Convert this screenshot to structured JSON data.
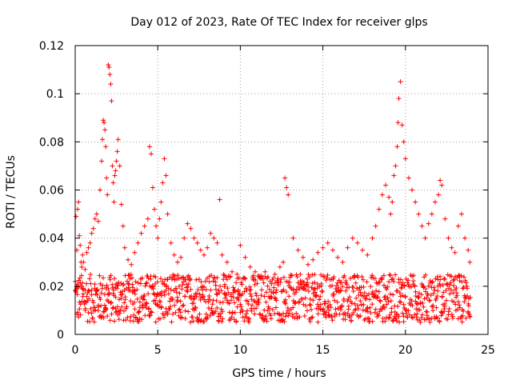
{
  "chart_data": {
    "type": "scatter",
    "title": "Day 012 of 2023, Rate Of TEC Index for receiver glps",
    "xlabel": "GPS time / hours",
    "ylabel": "ROTI / TECUs",
    "xlim": [
      0,
      25
    ],
    "ylim": [
      0,
      0.12
    ],
    "xticks": [
      0,
      5,
      10,
      15,
      20,
      25
    ],
    "xtick_labels": [
      "0",
      "5",
      "10",
      "15",
      "20",
      "25"
    ],
    "yticks": [
      0,
      0.02,
      0.04,
      0.06,
      0.08,
      0.1,
      0.12
    ],
    "ytick_labels": [
      "0",
      "0.02",
      "0.04",
      "0.06",
      "0.08",
      "0.1",
      "0.12"
    ],
    "grid": true,
    "marker": "plus",
    "series": [
      {
        "name": "ROTI",
        "color": "#ff0000",
        "x": [
          0.0,
          0.05,
          0.1,
          0.15,
          0.2,
          0.25,
          0.3,
          0.35,
          0.4,
          0.45,
          0.5,
          0.6,
          0.7,
          0.8,
          0.9,
          1.0,
          1.1,
          1.2,
          1.3,
          1.4,
          1.5,
          1.6,
          1.65,
          1.7,
          1.75,
          1.8,
          1.85,
          1.9,
          1.95,
          2.0,
          2.05,
          2.1,
          2.15,
          2.2,
          2.25,
          2.3,
          2.35,
          2.4,
          2.45,
          2.5,
          2.55,
          2.6,
          2.7,
          2.8,
          2.9,
          3.0,
          3.2,
          3.4,
          3.6,
          3.8,
          4.0,
          4.2,
          4.4,
          4.5,
          4.6,
          4.7,
          4.8,
          4.9,
          5.0,
          5.1,
          5.2,
          5.3,
          5.4,
          5.5,
          5.6,
          5.8,
          6.0,
          6.2,
          6.4,
          6.6,
          6.8,
          7.0,
          7.2,
          7.4,
          7.6,
          7.8,
          8.0,
          8.2,
          8.4,
          8.6,
          8.75,
          8.9,
          9.2,
          9.5,
          9.8,
          10.0,
          10.3,
          10.6,
          10.9,
          11.2,
          11.5,
          11.8,
          12.1,
          12.4,
          12.6,
          12.7,
          12.8,
          12.9,
          13.2,
          13.5,
          13.8,
          14.1,
          14.4,
          14.7,
          15.0,
          15.3,
          15.6,
          15.9,
          16.2,
          16.5,
          16.8,
          17.1,
          17.4,
          17.7,
          18.0,
          18.2,
          18.4,
          18.6,
          18.8,
          19.0,
          19.1,
          19.2,
          19.3,
          19.4,
          19.5,
          19.55,
          19.6,
          19.7,
          19.8,
          19.9,
          20.0,
          20.2,
          20.4,
          20.6,
          20.8,
          21.0,
          21.2,
          21.4,
          21.6,
          21.8,
          22.0,
          22.1,
          22.2,
          22.4,
          22.6,
          22.8,
          23.0,
          23.2,
          23.4,
          23.6,
          23.8,
          23.9
        ],
        "y": [
          0.022,
          0.049,
          0.035,
          0.052,
          0.055,
          0.041,
          0.037,
          0.03,
          0.028,
          0.033,
          0.03,
          0.027,
          0.034,
          0.036,
          0.038,
          0.042,
          0.044,
          0.048,
          0.05,
          0.047,
          0.06,
          0.072,
          0.081,
          0.089,
          0.088,
          0.085,
          0.078,
          0.065,
          0.058,
          0.112,
          0.111,
          0.108,
          0.104,
          0.097,
          0.07,
          0.063,
          0.055,
          0.066,
          0.068,
          0.072,
          0.076,
          0.081,
          0.07,
          0.054,
          0.045,
          0.036,
          0.031,
          0.029,
          0.034,
          0.038,
          0.042,
          0.045,
          0.048,
          0.078,
          0.075,
          0.061,
          0.052,
          0.045,
          0.04,
          0.048,
          0.055,
          0.063,
          0.073,
          0.066,
          0.05,
          0.038,
          0.033,
          0.03,
          0.032,
          0.04,
          0.046,
          0.044,
          0.04,
          0.038,
          0.035,
          0.033,
          0.036,
          0.042,
          0.04,
          0.038,
          0.056,
          0.033,
          0.03,
          0.026,
          0.025,
          0.037,
          0.032,
          0.028,
          0.026,
          0.024,
          0.026,
          0.022,
          0.025,
          0.028,
          0.03,
          0.065,
          0.061,
          0.058,
          0.04,
          0.035,
          0.032,
          0.029,
          0.031,
          0.034,
          0.036,
          0.038,
          0.035,
          0.032,
          0.03,
          0.036,
          0.04,
          0.038,
          0.035,
          0.033,
          0.04,
          0.045,
          0.052,
          0.058,
          0.062,
          0.057,
          0.05,
          0.055,
          0.066,
          0.07,
          0.078,
          0.088,
          0.098,
          0.105,
          0.087,
          0.08,
          0.073,
          0.065,
          0.06,
          0.055,
          0.05,
          0.045,
          0.04,
          0.046,
          0.05,
          0.055,
          0.058,
          0.064,
          0.062,
          0.048,
          0.04,
          0.036,
          0.034,
          0.045,
          0.05,
          0.04,
          0.035,
          0.03
        ],
        "baseline_band": [
          0.005,
          0.025
        ]
      }
    ]
  }
}
